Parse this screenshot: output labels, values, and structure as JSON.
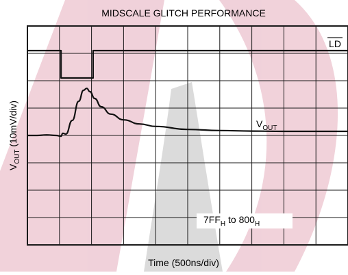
{
  "chart_data": {
    "type": "line",
    "title": "MIDSCALE GLITCH PERFORMANCE",
    "xlabel": "Time (500ns/div)",
    "ylabel": {
      "prefix": "V",
      "subscript": "OUT",
      "suffix": " (10mV/div)"
    },
    "x_divisions": 10,
    "y_divisions": 8,
    "grid": true,
    "xlim": [
      0,
      10
    ],
    "ylim": [
      0,
      8
    ],
    "series": [
      {
        "name": "LD",
        "x": [
          0,
          1.05,
          1.05,
          2.05,
          2.05,
          10
        ],
        "y": [
          7.1,
          7.1,
          6.1,
          6.1,
          7.1,
          7.1
        ]
      },
      {
        "name": "V_OUT",
        "x": [
          0,
          0.3,
          0.6,
          0.9,
          1.05,
          1.1,
          1.2,
          1.4,
          1.6,
          1.75,
          1.85,
          1.95,
          2.1,
          2.3,
          2.6,
          3.0,
          3.5,
          4.0,
          5.0,
          6.0,
          7.0,
          8.0,
          9.0,
          10.0
        ],
        "y": [
          4.0,
          4.0,
          4.02,
          4.0,
          3.97,
          4.08,
          4.05,
          4.55,
          5.25,
          5.65,
          5.72,
          5.6,
          5.35,
          5.05,
          4.78,
          4.57,
          4.42,
          4.33,
          4.22,
          4.18,
          4.16,
          4.15,
          4.15,
          4.15
        ]
      }
    ],
    "annotations": {
      "ld_label": "LD",
      "vout_label": {
        "main": "V",
        "sub": "OUT"
      },
      "transition": {
        "a": "7FF",
        "a_sub": "H",
        "mid": " to ",
        "b": "800",
        "b_sub": "H"
      }
    }
  }
}
